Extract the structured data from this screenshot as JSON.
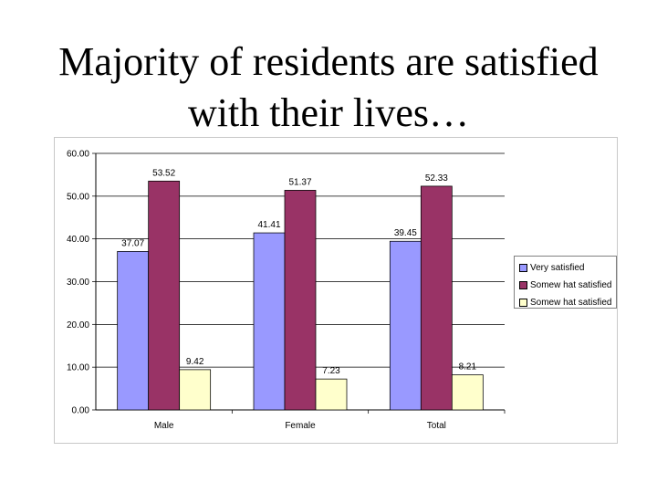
{
  "slide": {
    "title_line1": "Majority of residents are satisfied",
    "title_line2": "with their lives…"
  },
  "chart_data": {
    "type": "bar",
    "categories": [
      "Male",
      "Female",
      "Total"
    ],
    "series": [
      {
        "name": "Very satisfied",
        "values": [
          37.07,
          41.41,
          39.45
        ],
        "color": "#9999FF"
      },
      {
        "name": "Somewhat satisfied",
        "values": [
          53.52,
          51.37,
          52.33
        ],
        "color": "#993366"
      },
      {
        "name": "Somewhat satisfied",
        "values": [
          9.42,
          7.23,
          8.21
        ],
        "color": "#FFFFCC"
      }
    ],
    "ylim": [
      0,
      60
    ],
    "yticks": [
      "0.00",
      "10.00",
      "20.00",
      "30.00",
      "40.00",
      "50.00",
      "60.00"
    ],
    "data_labels": [
      [
        "37.07",
        "41.41",
        "39.45"
      ],
      [
        "53.52",
        "51.37",
        "52.33"
      ],
      [
        "9.42",
        "7.23",
        "8.21"
      ]
    ],
    "legend_labels": [
      "Very satisfied",
      "Somew hat satisfied",
      "Somew hat satisfied"
    ],
    "legend_position": "right",
    "plot_background": "#FFFFFF",
    "gridlines": true
  }
}
